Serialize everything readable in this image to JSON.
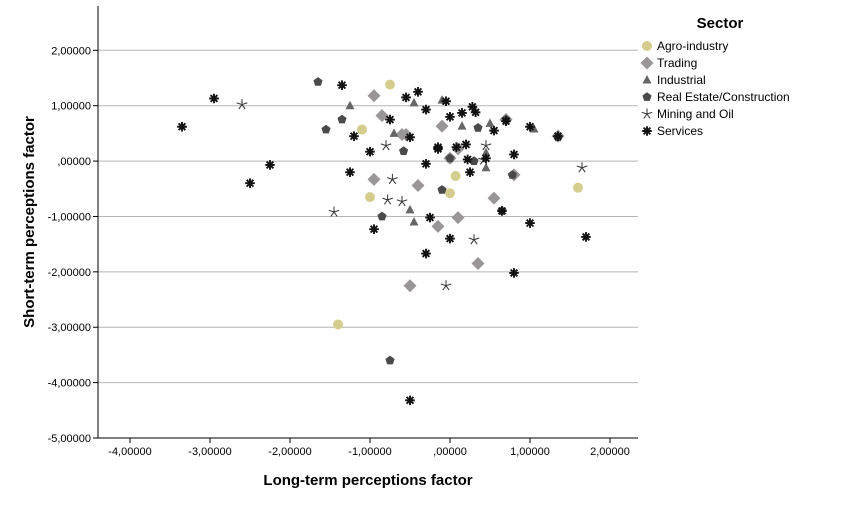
{
  "chart_data": {
    "type": "scatter",
    "xlabel": "Long-term perceptions factor",
    "ylabel": "Short-term perceptions factor",
    "xlim": [
      -4.4,
      2.35
    ],
    "ylim": [
      -5.0,
      2.8
    ],
    "x_ticks": [
      {
        "value": -4,
        "label": "-4,00000"
      },
      {
        "value": -3,
        "label": "-3,00000"
      },
      {
        "value": -2,
        "label": "-2,00000"
      },
      {
        "value": -1,
        "label": "-1,00000"
      },
      {
        "value": 0,
        "label": ",00000"
      },
      {
        "value": 1,
        "label": "1,00000"
      },
      {
        "value": 2,
        "label": "2,00000"
      }
    ],
    "y_ticks": [
      {
        "value": 2,
        "label": "2,00000"
      },
      {
        "value": 1,
        "label": "1,00000"
      },
      {
        "value": 0,
        "label": ",00000"
      },
      {
        "value": -1,
        "label": "-1,00000"
      },
      {
        "value": -2,
        "label": "-2,00000"
      },
      {
        "value": -3,
        "label": "-3,00000"
      },
      {
        "value": -4,
        "label": "-4,00000"
      },
      {
        "value": -5,
        "label": "-5,00000"
      }
    ],
    "grid": {
      "horizontal": true,
      "vertical": false
    },
    "legend": {
      "title": "Sector",
      "position": "right"
    },
    "series": [
      {
        "name": "Agro-industry",
        "marker": "circle",
        "color": "#d4cd8e",
        "points": [
          [
            -0.75,
            1.38
          ],
          [
            -1.1,
            0.57
          ],
          [
            -1.0,
            -0.65
          ],
          [
            0.07,
            -0.27
          ],
          [
            0.0,
            -0.58
          ],
          [
            1.6,
            -0.48
          ],
          [
            -1.4,
            -2.95
          ]
        ]
      },
      {
        "name": "Trading",
        "marker": "diamond",
        "color": "#9a9597",
        "points": [
          [
            -0.95,
            1.18
          ],
          [
            -0.85,
            0.82
          ],
          [
            -0.6,
            0.48
          ],
          [
            -0.95,
            -0.33
          ],
          [
            -0.4,
            -0.44
          ],
          [
            -0.15,
            -1.18
          ],
          [
            0.1,
            -1.02
          ],
          [
            -0.1,
            0.63
          ],
          [
            0.1,
            0.22
          ],
          [
            0.55,
            -0.67
          ],
          [
            0.35,
            -1.85
          ],
          [
            -0.5,
            -2.25
          ],
          [
            0.7,
            0.75
          ],
          [
            1.35,
            0.45
          ],
          [
            0.8,
            -0.25
          ],
          [
            -0.55,
            0.48
          ],
          [
            0.0,
            0.05
          ]
        ]
      },
      {
        "name": "Industrial",
        "marker": "triangle",
        "color": "#666666",
        "points": [
          [
            -1.25,
            1.0
          ],
          [
            -0.7,
            0.5
          ],
          [
            -0.45,
            1.05
          ],
          [
            -0.1,
            1.1
          ],
          [
            0.15,
            0.63
          ],
          [
            0.5,
            0.68
          ],
          [
            1.05,
            0.58
          ],
          [
            -0.5,
            -0.88
          ],
          [
            -0.45,
            -1.1
          ],
          [
            0.45,
            -0.12
          ],
          [
            0.45,
            0.15
          ]
        ]
      },
      {
        "name": "Real Estate/Construction",
        "marker": "pentagon",
        "color": "#4a4a4a",
        "points": [
          [
            -1.65,
            1.43
          ],
          [
            -1.55,
            0.57
          ],
          [
            -1.35,
            0.75
          ],
          [
            -0.58,
            0.18
          ],
          [
            -0.85,
            -1.0
          ],
          [
            -0.1,
            -0.52
          ],
          [
            0.35,
            0.6
          ],
          [
            0.7,
            0.75
          ],
          [
            0.78,
            -0.25
          ],
          [
            0.65,
            -0.9
          ],
          [
            -0.75,
            -3.6
          ],
          [
            1.35,
            0.43
          ],
          [
            0.3,
            0.0
          ],
          [
            0.0,
            0.05
          ]
        ]
      },
      {
        "name": "Mining and Oil",
        "marker": "star",
        "color": "#333333",
        "points": [
          [
            -2.6,
            1.02
          ],
          [
            -1.45,
            -0.92
          ],
          [
            -0.8,
            0.28
          ],
          [
            -0.72,
            -0.33
          ],
          [
            -0.78,
            -0.7
          ],
          [
            -0.6,
            -0.73
          ],
          [
            0.45,
            0.28
          ],
          [
            0.3,
            -1.42
          ],
          [
            -0.05,
            -2.25
          ],
          [
            1.65,
            -0.12
          ],
          [
            0.42,
            0.02
          ]
        ]
      },
      {
        "name": "Services",
        "marker": "asterisk",
        "color": "#111111",
        "points": [
          [
            -3.35,
            0.62
          ],
          [
            -2.95,
            1.13
          ],
          [
            -2.5,
            -0.4
          ],
          [
            -2.25,
            -0.07
          ],
          [
            -1.35,
            1.37
          ],
          [
            -1.25,
            -0.2
          ],
          [
            -1.2,
            0.45
          ],
          [
            -1.0,
            0.17
          ],
          [
            -0.95,
            -1.23
          ],
          [
            -0.75,
            0.75
          ],
          [
            -0.55,
            1.15
          ],
          [
            -0.5,
            0.43
          ],
          [
            -0.4,
            1.25
          ],
          [
            -0.3,
            0.93
          ],
          [
            -0.3,
            -0.05
          ],
          [
            -0.3,
            -1.67
          ],
          [
            -0.25,
            -1.02
          ],
          [
            -0.15,
            0.22
          ],
          [
            -0.05,
            1.08
          ],
          [
            0.0,
            0.8
          ],
          [
            0.0,
            -1.4
          ],
          [
            0.08,
            0.25
          ],
          [
            0.15,
            0.87
          ],
          [
            0.2,
            0.3
          ],
          [
            0.22,
            0.03
          ],
          [
            0.25,
            -0.2
          ],
          [
            0.28,
            0.98
          ],
          [
            0.32,
            0.88
          ],
          [
            0.45,
            0.05
          ],
          [
            0.55,
            0.55
          ],
          [
            0.65,
            -0.9
          ],
          [
            0.7,
            0.72
          ],
          [
            0.8,
            0.12
          ],
          [
            0.8,
            -2.02
          ],
          [
            1.0,
            -1.12
          ],
          [
            1.0,
            0.62
          ],
          [
            1.35,
            0.45
          ],
          [
            1.7,
            -1.37
          ],
          [
            -0.5,
            -4.32
          ],
          [
            -0.15,
            0.25
          ]
        ]
      }
    ]
  }
}
